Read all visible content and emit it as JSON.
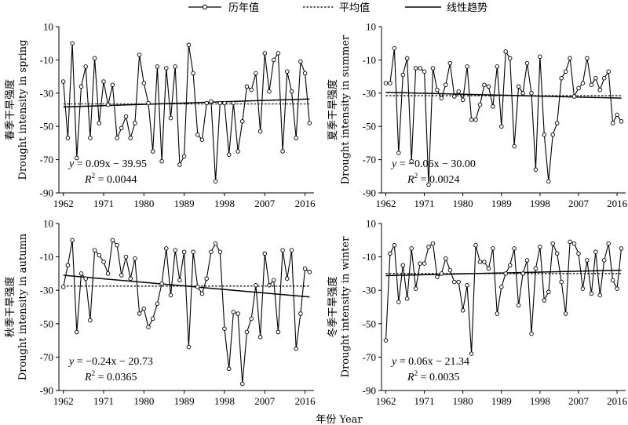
{
  "legend": {
    "annual": "历年值",
    "mean": "平均值",
    "trend": "线性趋势"
  },
  "xlabel": "年份 Year",
  "chart_data": [
    {
      "type": "line",
      "panel": "spring",
      "ylabel_cn": "春季干旱强度",
      "ylabel_en": "Drought intensity in spring",
      "x_ticks": [
        1962,
        1971,
        1980,
        1989,
        1998,
        2007,
        2016
      ],
      "y_ticks": [
        10,
        -10,
        -30,
        -50,
        -70,
        -90
      ],
      "xlim": [
        1961,
        2018
      ],
      "ylim": [
        -90,
        10
      ],
      "eq_y": "y",
      "eq_x": "x",
      "eq_text": " = 0.09x − 39.95",
      "r2_label": "R",
      "r2_text": " = 0.0044",
      "mean": -36.5,
      "trend": {
        "x0": 1962,
        "y0": -38.3,
        "x1": 2017,
        "y1": -33.5
      },
      "x": [
        1962,
        1963,
        1964,
        1965,
        1966,
        1967,
        1968,
        1969,
        1970,
        1971,
        1972,
        1973,
        1974,
        1975,
        1976,
        1977,
        1978,
        1979,
        1980,
        1981,
        1982,
        1983,
        1984,
        1985,
        1986,
        1987,
        1988,
        1989,
        1990,
        1991,
        1992,
        1993,
        1994,
        1995,
        1996,
        1997,
        1998,
        1999,
        2000,
        2001,
        2002,
        2003,
        2004,
        2005,
        2006,
        2007,
        2008,
        2009,
        2010,
        2011,
        2012,
        2013,
        2014,
        2015,
        2016,
        2017
      ],
      "values": [
        -23,
        -57,
        0,
        -69,
        -26,
        -14,
        -57,
        -9,
        -48,
        -23,
        -37,
        -25,
        -57,
        -51,
        -44,
        -57,
        -48,
        -7,
        -24,
        -36,
        -65,
        -14,
        -71,
        -15,
        -45,
        -14,
        -73,
        -68,
        -1,
        -18,
        -55,
        -58,
        -36,
        -35,
        -83,
        -36,
        -36,
        -67,
        -36,
        -65,
        -47,
        -26,
        -28,
        -18,
        -53,
        -6,
        -29,
        -10,
        -6,
        -65,
        -17,
        -29,
        -57,
        -11,
        -18,
        -48
      ]
    },
    {
      "type": "line",
      "panel": "summer",
      "ylabel_cn": "夏季干旱强度",
      "ylabel_en": "Drought intensity in summer",
      "x_ticks": [
        1962,
        1971,
        1980,
        1989,
        1998,
        2007,
        2016
      ],
      "y_ticks": [
        10,
        -10,
        -30,
        -50,
        -70,
        -90
      ],
      "xlim": [
        1961,
        2018
      ],
      "ylim": [
        -90,
        10
      ],
      "eq_y": "y",
      "eq_x": "x",
      "eq_text": " = −0.06x − 30.00",
      "r2_label": "R",
      "r2_text": " = 0.0024",
      "mean": -31.5,
      "trend": {
        "x0": 1962,
        "y0": -29.5,
        "x1": 2017,
        "y1": -33.0
      },
      "x": [
        1962,
        1963,
        1964,
        1965,
        1966,
        1967,
        1968,
        1969,
        1970,
        1971,
        1972,
        1973,
        1974,
        1975,
        1976,
        1977,
        1978,
        1979,
        1980,
        1981,
        1982,
        1983,
        1984,
        1985,
        1986,
        1987,
        1988,
        1989,
        1990,
        1991,
        1992,
        1993,
        1994,
        1995,
        1996,
        1997,
        1998,
        1999,
        2000,
        2001,
        2002,
        2003,
        2004,
        2005,
        2006,
        2007,
        2008,
        2009,
        2010,
        2011,
        2012,
        2013,
        2014,
        2015,
        2016,
        2017
      ],
      "values": [
        -24,
        -24,
        -3,
        -66,
        -19,
        -9,
        -71,
        -15,
        -15,
        -17,
        -85,
        -15,
        -28,
        -33,
        -25,
        -12,
        -32,
        -29,
        -34,
        -14,
        -46,
        -46,
        -37,
        -25,
        -26,
        -38,
        -14,
        -50,
        -5,
        -9,
        -62,
        -26,
        -30,
        -12,
        -30,
        -76,
        -8,
        -55,
        -83,
        -55,
        -48,
        -21,
        -17,
        -9,
        -32,
        -27,
        -24,
        -9,
        -25,
        -21,
        -28,
        -21,
        -17,
        -48,
        -43,
        -47
      ]
    },
    {
      "type": "line",
      "panel": "autumn",
      "ylabel_cn": "秋季干旱强度",
      "ylabel_en": "Drought intensity in autumn",
      "x_ticks": [
        1962,
        1971,
        1980,
        1989,
        1998,
        2007,
        2016
      ],
      "y_ticks": [
        10,
        -10,
        -30,
        -50,
        -70,
        -90
      ],
      "xlim": [
        1961,
        2018
      ],
      "ylim": [
        -90,
        10
      ],
      "eq_y": "y",
      "eq_x": "x",
      "eq_text": " = −0.24x − 20.73",
      "r2_label": "R",
      "r2_text": " = 0.0365",
      "mean": -27.5,
      "trend": {
        "x0": 1962,
        "y0": -21.0,
        "x1": 2017,
        "y1": -34.0
      },
      "x": [
        1962,
        1963,
        1964,
        1965,
        1966,
        1967,
        1968,
        1969,
        1970,
        1971,
        1972,
        1973,
        1974,
        1975,
        1976,
        1977,
        1978,
        1979,
        1980,
        1981,
        1982,
        1983,
        1984,
        1985,
        1986,
        1987,
        1988,
        1989,
        1990,
        1991,
        1992,
        1993,
        1994,
        1995,
        1996,
        1997,
        1998,
        1999,
        2000,
        2001,
        2002,
        2003,
        2004,
        2005,
        2006,
        2007,
        2008,
        2009,
        2010,
        2011,
        2012,
        2013,
        2014,
        2015,
        2016,
        2017
      ],
      "values": [
        -28,
        -15,
        0,
        -55,
        -20,
        -23,
        -48,
        -6,
        -9,
        -13,
        -20,
        0,
        -3,
        -21,
        -10,
        -23,
        -11,
        -44,
        -41,
        -52,
        -47,
        -38,
        -26,
        -5,
        -33,
        -6,
        -24,
        -7,
        -64,
        -7,
        -28,
        -32,
        -23,
        -7,
        -2,
        -7,
        -53,
        -77,
        -43,
        -44,
        -86,
        -55,
        -47,
        -27,
        -58,
        -8,
        -27,
        -24,
        -55,
        -6,
        -23,
        -6,
        -65,
        -44,
        -17,
        -19
      ]
    },
    {
      "type": "line",
      "panel": "winter",
      "ylabel_cn": "冬季干旱强度",
      "ylabel_en": "Drought intensity in winter",
      "x_ticks": [
        1962,
        1971,
        1980,
        1989,
        1998,
        2007,
        2016
      ],
      "y_ticks": [
        10,
        -10,
        -30,
        -50,
        -70,
        -90
      ],
      "xlim": [
        1961,
        2018
      ],
      "ylim": [
        -90,
        10
      ],
      "eq_y": "y",
      "eq_x": "x",
      "eq_text": " = 0.06x − 21.34",
      "r2_label": "R",
      "r2_text": " = 0.0035",
      "mean": -20.0,
      "trend": {
        "x0": 1962,
        "y0": -21.2,
        "x1": 2017,
        "y1": -18.0
      },
      "x": [
        1962,
        1963,
        1964,
        1965,
        1966,
        1967,
        1968,
        1969,
        1970,
        1971,
        1972,
        1973,
        1974,
        1975,
        1976,
        1977,
        1978,
        1979,
        1980,
        1981,
        1982,
        1983,
        1984,
        1985,
        1986,
        1987,
        1988,
        1989,
        1990,
        1991,
        1992,
        1993,
        1994,
        1995,
        1996,
        1997,
        1998,
        1999,
        2000,
        2001,
        2002,
        2003,
        2004,
        2005,
        2006,
        2007,
        2008,
        2009,
        2010,
        2011,
        2012,
        2013,
        2014,
        2015,
        2016,
        2017
      ],
      "values": [
        -60,
        -8,
        -3,
        -37,
        -15,
        -35,
        -5,
        -29,
        -14,
        -14,
        -4,
        -2,
        -22,
        -20,
        -11,
        -18,
        -25,
        -25,
        -42,
        -27,
        -68,
        -3,
        -13,
        -13,
        -17,
        -5,
        -44,
        -28,
        -20,
        -15,
        -5,
        -39,
        -20,
        -12,
        -56,
        -17,
        -4,
        -36,
        -31,
        -2,
        -8,
        -25,
        -44,
        -1,
        -2,
        -8,
        -29,
        -12,
        -32,
        -7,
        -33,
        -12,
        -2,
        -24,
        -29,
        -5
      ]
    }
  ]
}
